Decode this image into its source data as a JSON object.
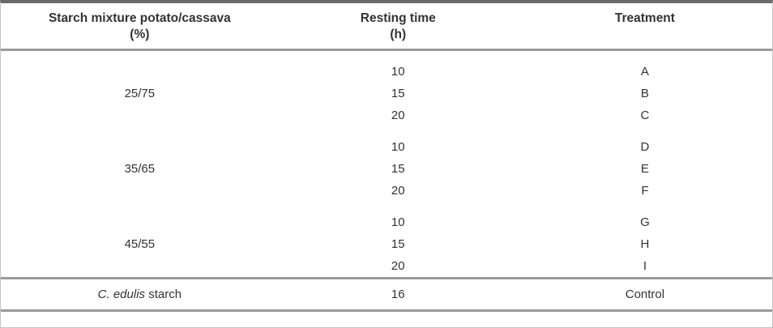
{
  "table": {
    "headers": [
      {
        "line1": "Starch mixture potato/cassava",
        "line2": "(%)"
      },
      {
        "line1": "Resting time",
        "line2": "(h)"
      },
      {
        "line1": "Treatment",
        "line2": ""
      }
    ],
    "groups": [
      {
        "mixture": "25/75",
        "rows": [
          {
            "time": "10",
            "treatment": "A"
          },
          {
            "time": "15",
            "treatment": "B"
          },
          {
            "time": "20",
            "treatment": "C"
          }
        ]
      },
      {
        "mixture": "35/65",
        "rows": [
          {
            "time": "10",
            "treatment": "D"
          },
          {
            "time": "15",
            "treatment": "E"
          },
          {
            "time": "20",
            "treatment": "F"
          }
        ]
      },
      {
        "mixture": "45/55",
        "rows": [
          {
            "time": "10",
            "treatment": "G"
          },
          {
            "time": "15",
            "treatment": "H"
          },
          {
            "time": "20",
            "treatment": "I"
          }
        ]
      }
    ],
    "control_row": {
      "label_italic": "C. edulis",
      "label_rest": " starch",
      "time": "16",
      "treatment": "Control"
    }
  },
  "colors": {
    "rule": "#9a9a9a",
    "top_band": "#6a6a6a",
    "text": "#333333",
    "background": "#ffffff"
  }
}
